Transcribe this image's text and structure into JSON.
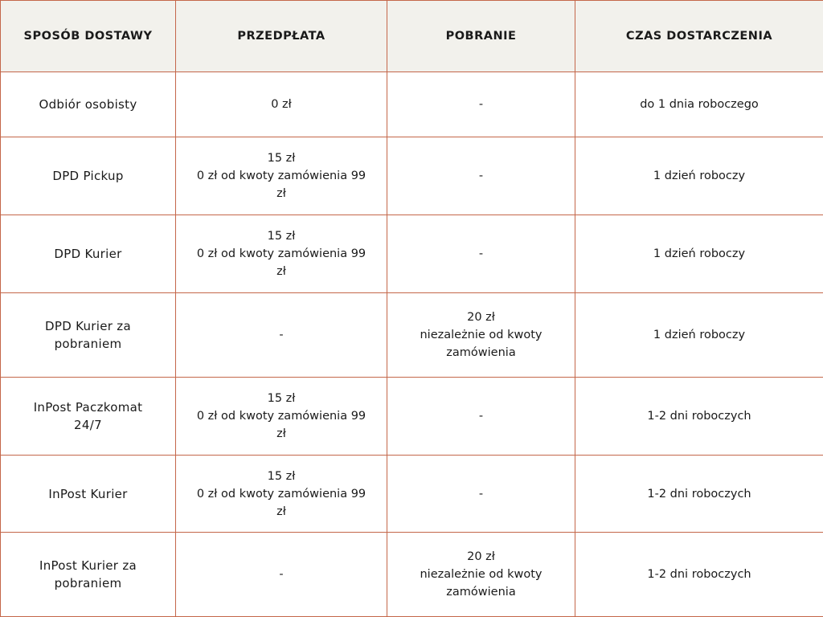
{
  "colors": {
    "border": "#c4674a",
    "header_bg": "#f2f1ec",
    "text": "#1a1a1a"
  },
  "headers": [
    "SPOSÓB DOSTAWY",
    "PRZEDPŁATA",
    "POBRANIE",
    "CZAS DOSTARCZENIA"
  ],
  "rows": [
    {
      "method": [
        "Odbiór osobisty"
      ],
      "prepaid": [
        "0  zł"
      ],
      "cod": [
        "-"
      ],
      "time": [
        "do 1 dnia roboczego"
      ]
    },
    {
      "method": [
        "DPD Pickup"
      ],
      "prepaid": [
        "15 zł",
        "0 zł od kwoty zamówienia 99",
        "zł"
      ],
      "cod": [
        "-"
      ],
      "time": [
        "1 dzień roboczy"
      ]
    },
    {
      "method": [
        "DPD Kurier"
      ],
      "prepaid": [
        "15 zł",
        "0 zł od kwoty zamówienia 99",
        "zł"
      ],
      "cod": [
        "-"
      ],
      "time": [
        "1 dzień roboczy"
      ]
    },
    {
      "method": [
        "DPD Kurier za",
        "pobraniem"
      ],
      "prepaid": [
        "-"
      ],
      "cod": [
        "20 zł",
        "niezależnie od kwoty",
        "zamówienia"
      ],
      "time": [
        "1 dzień roboczy"
      ]
    },
    {
      "method": [
        "InPost Paczkomat",
        "24/7"
      ],
      "prepaid": [
        "15 zł",
        "0 zł od kwoty zamówienia 99",
        "zł"
      ],
      "cod": [
        "-"
      ],
      "time": [
        "1-2 dni roboczych"
      ]
    },
    {
      "method": [
        "InPost Kurier"
      ],
      "prepaid": [
        "15 zł",
        "0 zł od kwoty zamówienia 99",
        "zł"
      ],
      "cod": [
        "-"
      ],
      "time": [
        "1-2 dni roboczych"
      ]
    },
    {
      "method": [
        "InPost Kurier za",
        "pobraniem"
      ],
      "prepaid": [
        "-"
      ],
      "cod": [
        "20 zł",
        "niezależnie od kwoty",
        "zamówienia"
      ],
      "time": [
        "1-2 dni roboczych"
      ]
    }
  ]
}
